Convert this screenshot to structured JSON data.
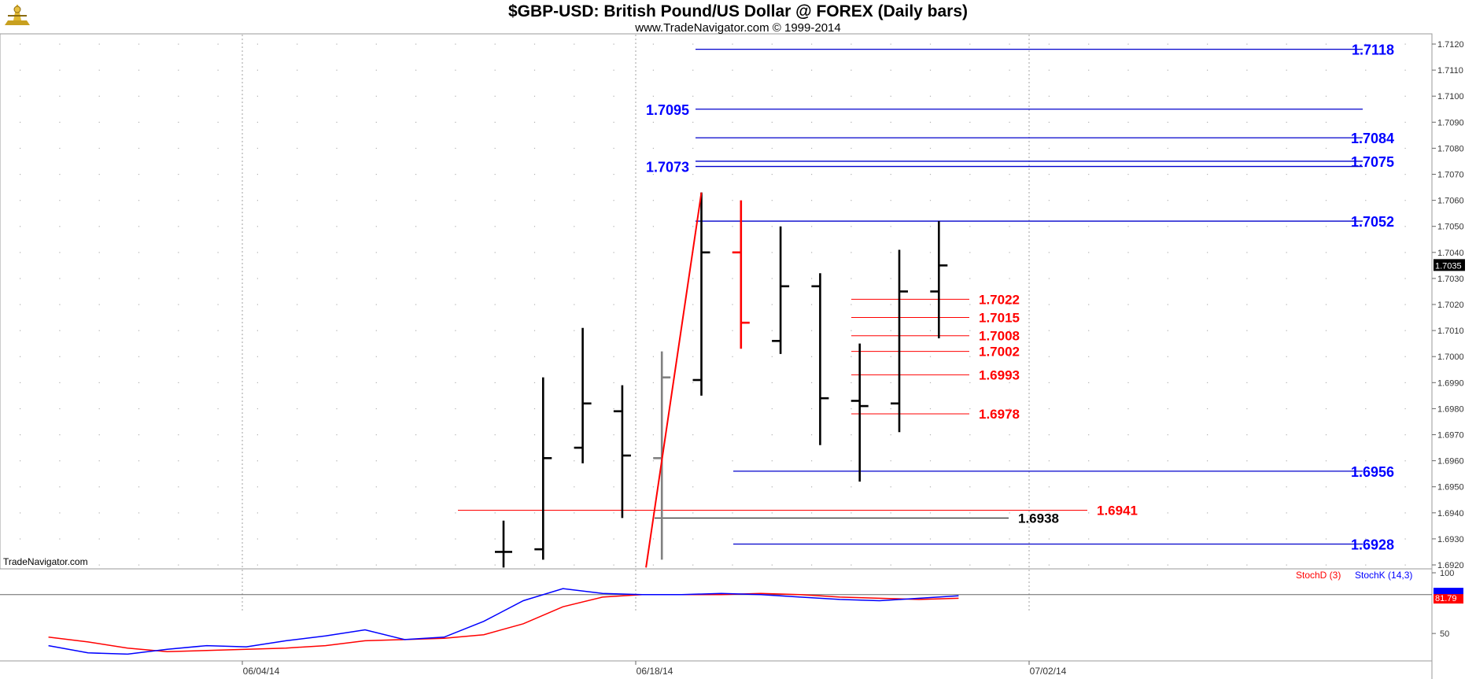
{
  "header": {
    "title": "$GBP-USD:  British Pound/US Dollar @ FOREX  (Daily bars)",
    "subtitle": "www.TradeNavigator.com © 1999-2014"
  },
  "watermark": "TradeNavigator.com",
  "logo_icon": "tradenavigator-logo-icon",
  "chart_data": [
    {
      "type": "ohlc",
      "y_ticks": [
        "1.6920",
        "1.6930",
        "1.6940",
        "1.6950",
        "1.6960",
        "1.6970",
        "1.6980",
        "1.6990",
        "1.7000",
        "1.7010",
        "1.7020",
        "1.7030",
        "1.7040",
        "1.7050",
        "1.7060",
        "1.7070",
        "1.7080",
        "1.7090",
        "1.7100",
        "1.7110",
        "1.7120"
      ],
      "ylim": [
        1.6918,
        1.7122
      ],
      "x_ticks": [
        "06/04/14",
        "06/18/14",
        "07/02/14"
      ],
      "last_price_label": "1.7035",
      "bars": [
        {
          "open": 1.6925,
          "high": 1.6937,
          "low": 1.6919,
          "close": 1.6925,
          "color": "#000000"
        },
        {
          "open": 1.6926,
          "high": 1.6992,
          "low": 1.6922,
          "close": 1.6961,
          "color": "#000000"
        },
        {
          "open": 1.6965,
          "high": 1.7011,
          "low": 1.6959,
          "close": 1.6982,
          "color": "#000000"
        },
        {
          "open": 1.6979,
          "high": 1.6989,
          "low": 1.6938,
          "close": 1.6962,
          "color": "#000000"
        },
        {
          "open": 1.6961,
          "high": 1.7002,
          "low": 1.6922,
          "close": 1.6992,
          "color": "#808080"
        },
        {
          "open": 1.6991,
          "high": 1.7063,
          "low": 1.6985,
          "close": 1.704,
          "color": "#000000"
        },
        {
          "open": 1.704,
          "high": 1.706,
          "low": 1.7003,
          "close": 1.7013,
          "color": "#ff0000"
        },
        {
          "open": 1.7006,
          "high": 1.705,
          "low": 1.7001,
          "close": 1.7027,
          "color": "#000000"
        },
        {
          "open": 1.7027,
          "high": 1.7032,
          "low": 1.6966,
          "close": 1.6984,
          "color": "#000000"
        },
        {
          "open": 1.6983,
          "high": 1.7005,
          "low": 1.6952,
          "close": 1.6981,
          "color": "#000000"
        },
        {
          "open": 1.6982,
          "high": 1.7041,
          "low": 1.6971,
          "close": 1.7025,
          "color": "#000000"
        },
        {
          "open": 1.7025,
          "high": 1.7052,
          "low": 1.7007,
          "close": 1.7035,
          "color": "#000000"
        }
      ],
      "trendline": {
        "from": {
          "bar": 3.6,
          "price": 1.6919
        },
        "to": {
          "bar": 5,
          "price": 1.7063
        },
        "color": "#ff0000"
      },
      "levels_blue": [
        {
          "value": 1.7118,
          "label": "1.7118",
          "from_bar": 5,
          "label_side": "right"
        },
        {
          "value": 1.7095,
          "label": "1.7095",
          "from_bar": 5,
          "label_side": "left"
        },
        {
          "value": 1.7084,
          "label": "1.7084",
          "from_bar": 5,
          "label_side": "right"
        },
        {
          "value": 1.7075,
          "label": "1.7075",
          "from_bar": 5,
          "label_side": "right"
        },
        {
          "value": 1.7073,
          "label": "1.7073",
          "from_bar": 5,
          "label_side": "left"
        },
        {
          "value": 1.7052,
          "label": "1.7052",
          "from_bar": 5,
          "label_side": "right"
        },
        {
          "value": 1.6956,
          "label": "1.6956",
          "from_bar": 6,
          "label_side": "right"
        },
        {
          "value": 1.6928,
          "label": "1.6928",
          "from_bar": 6,
          "label_side": "right"
        }
      ],
      "levels_red": [
        {
          "value": 1.7022,
          "label": "1.7022"
        },
        {
          "value": 1.7015,
          "label": "1.7015"
        },
        {
          "value": 1.7008,
          "label": "1.7008"
        },
        {
          "value": 1.7002,
          "label": "1.7002"
        },
        {
          "value": 1.6993,
          "label": "1.6993"
        },
        {
          "value": 1.6978,
          "label": "1.6978"
        }
      ],
      "level_red_long": {
        "value": 1.6941,
        "label": "1.6941"
      },
      "level_black": {
        "value": 1.6938,
        "label": "1.6938"
      }
    },
    {
      "type": "line",
      "legend": [
        {
          "name": "StochD (3)",
          "color": "#ff0000"
        },
        {
          "name": "StochK (14,3)",
          "color": "#0000ff"
        }
      ],
      "y_ticks": [
        "100",
        "50"
      ],
      "ylim": [
        30,
        100
      ],
      "current_value_label": "81.79",
      "series": [
        {
          "name": "StochD (3)",
          "color": "#ff0000",
          "x": [
            -11.5,
            -10.5,
            -9.5,
            -8.5,
            -7.5,
            -6.5,
            -5.5,
            -4.5,
            -3.5,
            -2.5,
            -1.5,
            -0.5,
            0.5,
            1.5,
            2.5,
            3.5,
            4.5,
            5.5,
            6.5,
            7.5,
            8.5,
            9.5,
            10.5,
            11.5
          ],
          "values": [
            47,
            43,
            38,
            35,
            36,
            37,
            38,
            40,
            44,
            45,
            46,
            49,
            58,
            72,
            80,
            82,
            82,
            82,
            83,
            82,
            80,
            79,
            78,
            79
          ]
        },
        {
          "name": "StochK (14,3)",
          "color": "#0000ff",
          "x": [
            -11.5,
            -10.5,
            -9.5,
            -8.5,
            -7.5,
            -6.5,
            -5.5,
            -4.5,
            -3.5,
            -2.5,
            -1.5,
            -0.5,
            0.5,
            1.5,
            2.5,
            3.5,
            4.5,
            5.5,
            6.5,
            7.5,
            8.5,
            9.5,
            10.5,
            11.5
          ],
          "values": [
            40,
            34,
            33,
            37,
            40,
            39,
            44,
            48,
            53,
            45,
            47,
            60,
            77,
            87,
            83,
            82,
            82,
            83,
            82,
            80,
            78,
            77,
            79,
            81
          ]
        }
      ],
      "reference_line": 82
    }
  ]
}
